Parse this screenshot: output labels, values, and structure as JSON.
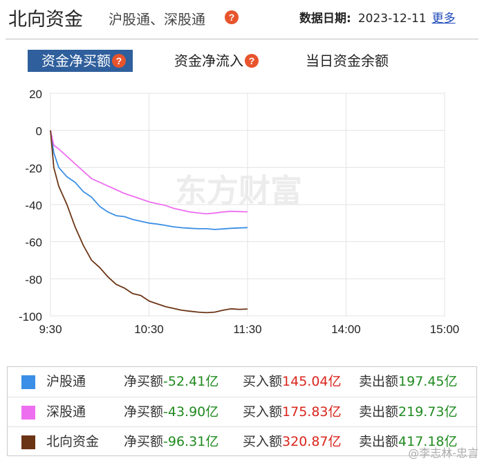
{
  "header": {
    "title": "北向资金",
    "subtitle": "沪股通、深股通",
    "help_icon": "question-icon",
    "date_label": "数据日期:",
    "date_value": "2023-12-11",
    "more_link": "更多"
  },
  "tabs": [
    {
      "label": "资金净买额",
      "active": true
    },
    {
      "label": "资金净流入",
      "active": false
    },
    {
      "label": "当日资金余额",
      "active": false
    }
  ],
  "watermark_logo": "东方财富",
  "colors": {
    "accent": "#2f5f9c",
    "help": "#e8542c",
    "sh": "#3a8ee6",
    "sz": "#ee6ef0",
    "north": "#6b3414",
    "red": "#d9251c",
    "green": "#1f8a1f"
  },
  "chart_data": {
    "type": "line",
    "x_ticks": [
      "9:30",
      "10:30",
      "11:30",
      "14:00",
      "15:00"
    ],
    "x_domain": [
      "9:30",
      "11:30",
      "13:00",
      "15:00"
    ],
    "y_ticks": [
      20,
      0,
      -20,
      -40,
      -60,
      -80,
      -100
    ],
    "ylim": [
      -100,
      20
    ],
    "grid": true,
    "series": [
      {
        "name": "沪股通",
        "color": "#3a8ee6",
        "times": [
          "9:30",
          "9:32",
          "9:35",
          "9:40",
          "9:45",
          "9:50",
          "9:55",
          "10:00",
          "10:05",
          "10:10",
          "10:15",
          "10:20",
          "10:25",
          "10:30",
          "10:35",
          "10:40",
          "10:45",
          "10:50",
          "10:55",
          "11:00",
          "11:05",
          "11:10",
          "11:15",
          "11:20",
          "11:25",
          "11:30"
        ],
        "values": [
          0,
          -12,
          -20,
          -25,
          -28,
          -33,
          -36,
          -41,
          -44,
          -46,
          -46.5,
          -48,
          -49,
          -50,
          -50.5,
          -51.2,
          -52,
          -52.5,
          -52.8,
          -53,
          -53,
          -53.4,
          -53.1,
          -52.8,
          -52.6,
          -52.41
        ]
      },
      {
        "name": "深股通",
        "color": "#ee6ef0",
        "times": [
          "9:30",
          "9:32",
          "9:35",
          "9:40",
          "9:45",
          "9:50",
          "9:55",
          "10:00",
          "10:05",
          "10:10",
          "10:15",
          "10:20",
          "10:25",
          "10:30",
          "10:35",
          "10:40",
          "10:45",
          "10:50",
          "10:55",
          "11:00",
          "11:05",
          "11:10",
          "11:15",
          "11:20",
          "11:25",
          "11:30"
        ],
        "values": [
          0,
          -8,
          -10,
          -14,
          -18,
          -22,
          -26,
          -28,
          -30,
          -32,
          -34,
          -35.5,
          -37,
          -38.5,
          -39.5,
          -40.5,
          -42,
          -43,
          -44,
          -44.5,
          -45,
          -44.6,
          -44,
          -43.6,
          -43.8,
          -43.9
        ]
      },
      {
        "name": "北向资金",
        "color": "#6b3414",
        "times": [
          "9:30",
          "9:32",
          "9:35",
          "9:40",
          "9:45",
          "9:50",
          "9:55",
          "10:00",
          "10:05",
          "10:10",
          "10:15",
          "10:20",
          "10:25",
          "10:30",
          "10:35",
          "10:40",
          "10:45",
          "10:50",
          "10:55",
          "11:00",
          "11:05",
          "11:10",
          "11:15",
          "11:20",
          "11:25",
          "11:30"
        ],
        "values": [
          0,
          -20,
          -30,
          -40,
          -52,
          -62,
          -70,
          -74,
          -79,
          -83,
          -85,
          -88,
          -89,
          -92,
          -93.5,
          -95,
          -96,
          -97,
          -97.5,
          -98,
          -98.3,
          -98,
          -97,
          -96.2,
          -96.5,
          -96.31
        ]
      }
    ]
  },
  "legend": [
    {
      "name": "沪股通",
      "color": "#3a8ee6",
      "net_label": "净买额",
      "net_value": "-52.41亿",
      "buy_label": "买入额",
      "buy_value": "145.04亿",
      "sell_label": "卖出额",
      "sell_value": "197.45亿"
    },
    {
      "name": "深股通",
      "color": "#ee6ef0",
      "net_label": "净买额",
      "net_value": "-43.90亿",
      "buy_label": "买入额",
      "buy_value": "175.83亿",
      "sell_label": "卖出额",
      "sell_value": "219.73亿"
    },
    {
      "name": "北向资金",
      "color": "#6b3414",
      "net_label": "净买额",
      "net_value": "-96.31亿",
      "buy_label": "买入额",
      "buy_value": "320.87亿",
      "sell_label": "卖出额",
      "sell_value": "417.18亿"
    }
  ],
  "credit": "@李志林-忠言"
}
